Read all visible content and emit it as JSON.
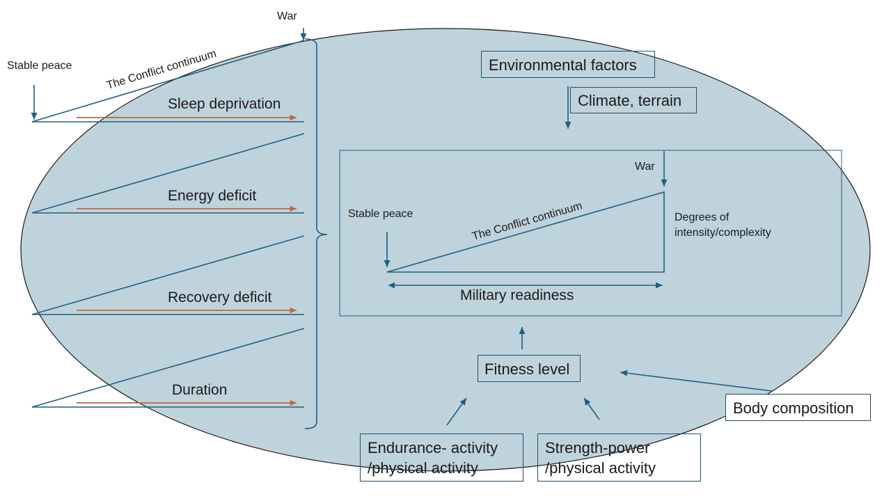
{
  "colors": {
    "ellipse_fill": "#bfd3dd",
    "line": "#1f5f80",
    "arrow_orange": "#c0683a",
    "text": "#1a1a1a"
  },
  "left_panel": {
    "stable_peace": "Stable peace",
    "war": "War",
    "continuum": "The Conflict continuum",
    "factors": [
      "Sleep deprivation",
      "Energy deficit",
      "Recovery deficit",
      "Duration"
    ]
  },
  "environment": {
    "title": "Environmental factors",
    "sub": "Climate, terrain"
  },
  "inner_diagram": {
    "war": "War",
    "stable_peace": "Stable peace",
    "continuum": "The Conflict continuum",
    "degrees_line1": "Degrees of",
    "degrees_line2": "intensity/complexity",
    "readiness": "Military readiness"
  },
  "fitness": {
    "level": "Fitness level",
    "body_composition": "Body composition",
    "endurance_line1": "Endurance- activity",
    "endurance_line2": "/physical activity",
    "strength_line1": "Strength-power",
    "strength_line2": "/physical activity"
  }
}
